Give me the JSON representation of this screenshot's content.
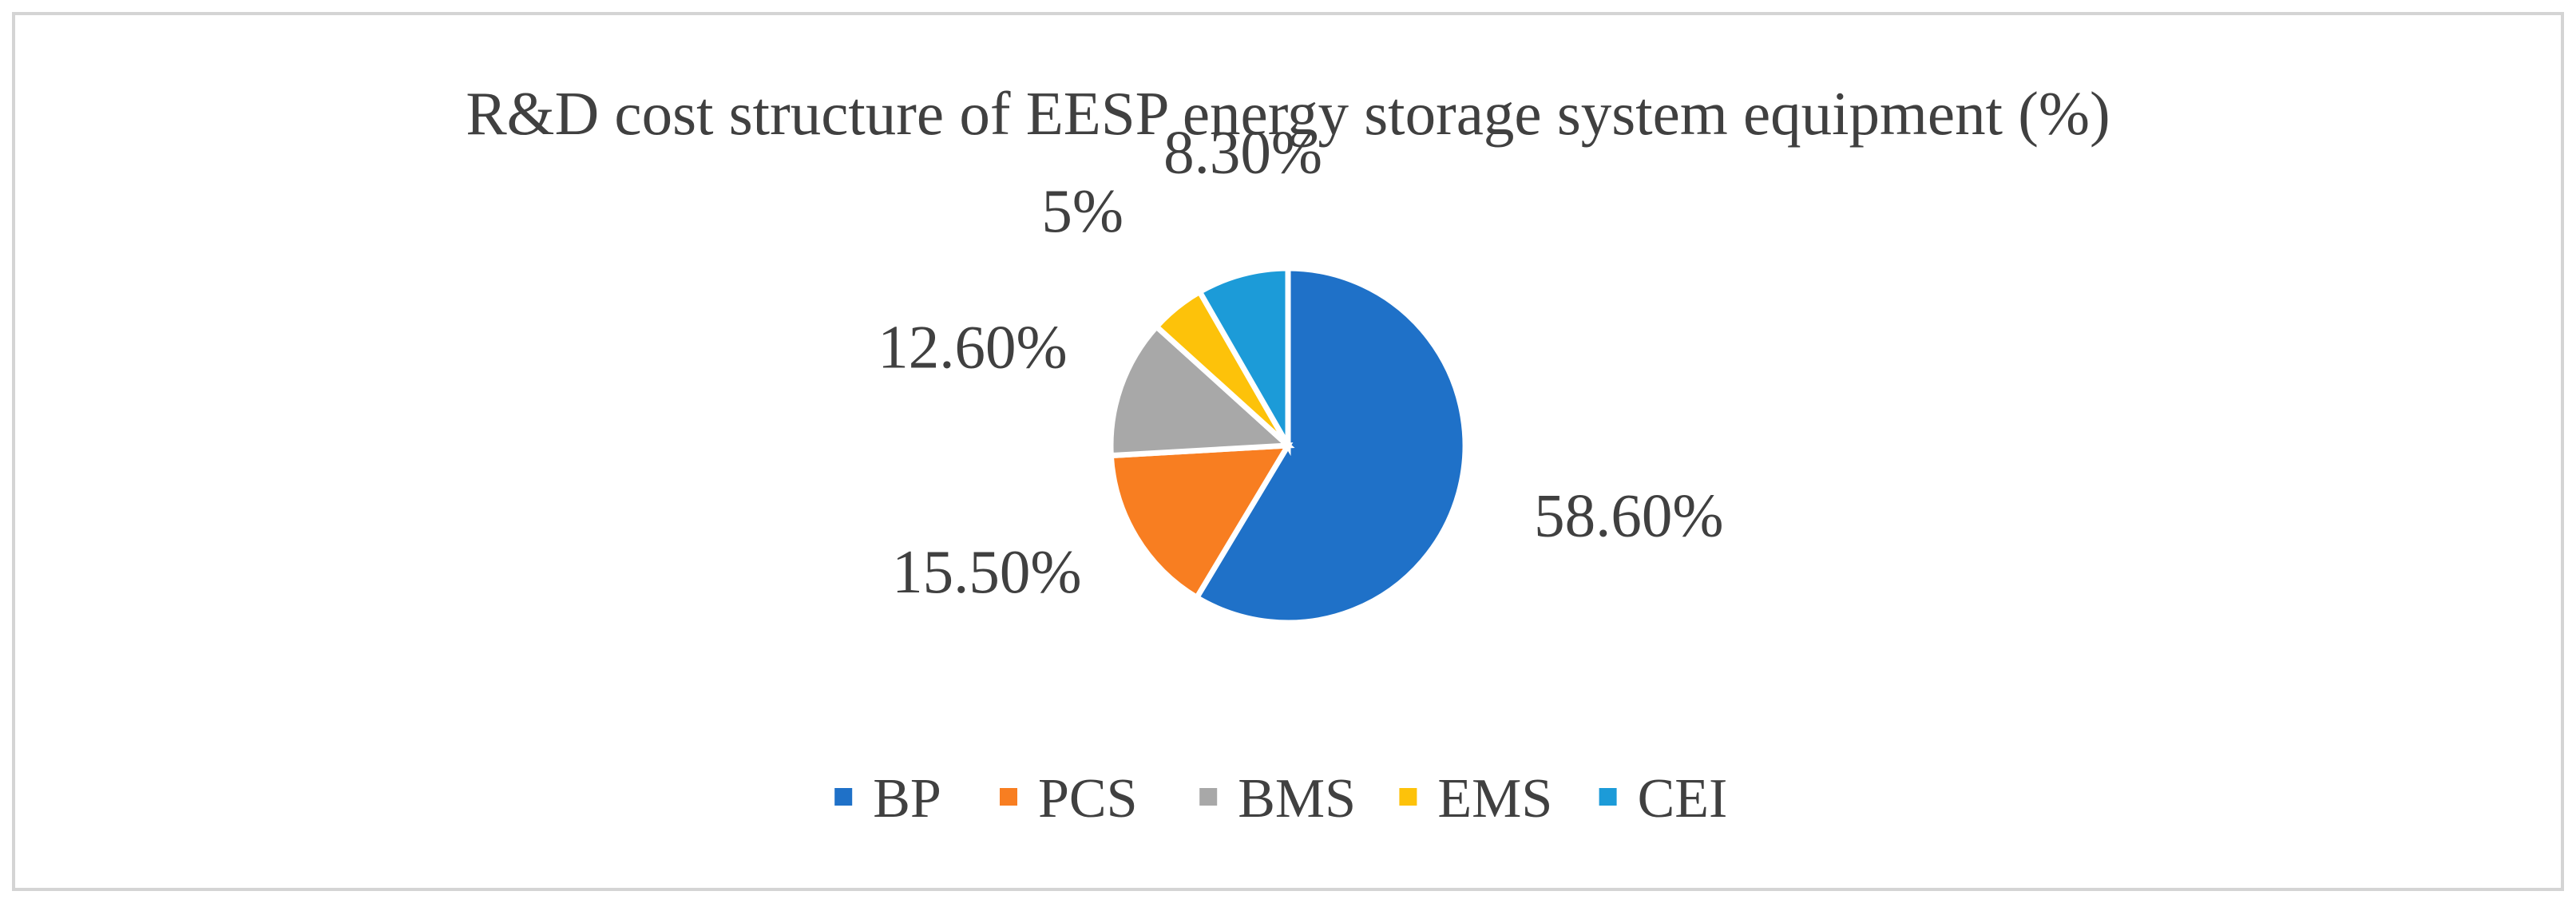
{
  "chart_data": {
    "type": "pie",
    "title": "R&D cost structure of EESP energy storage system equipment (%)",
    "categories": [
      "BP",
      "PCS",
      "BMS",
      "EMS",
      "CEI"
    ],
    "values": [
      58.6,
      15.5,
      12.6,
      5,
      8.3
    ],
    "data_labels": [
      "58.60%",
      "15.50%",
      "12.60%",
      "5%",
      "8.30%"
    ],
    "colors": [
      "#1F71C8",
      "#F87E21",
      "#A8A8A8",
      "#FDC20A",
      "#1C9BD8"
    ],
    "legend": {
      "position": "bottom",
      "entries": [
        "BP",
        "PCS",
        "BMS",
        "EMS",
        "CEI"
      ]
    },
    "start_angle_deg": 0,
    "direction": "clockwise",
    "grid": false
  }
}
